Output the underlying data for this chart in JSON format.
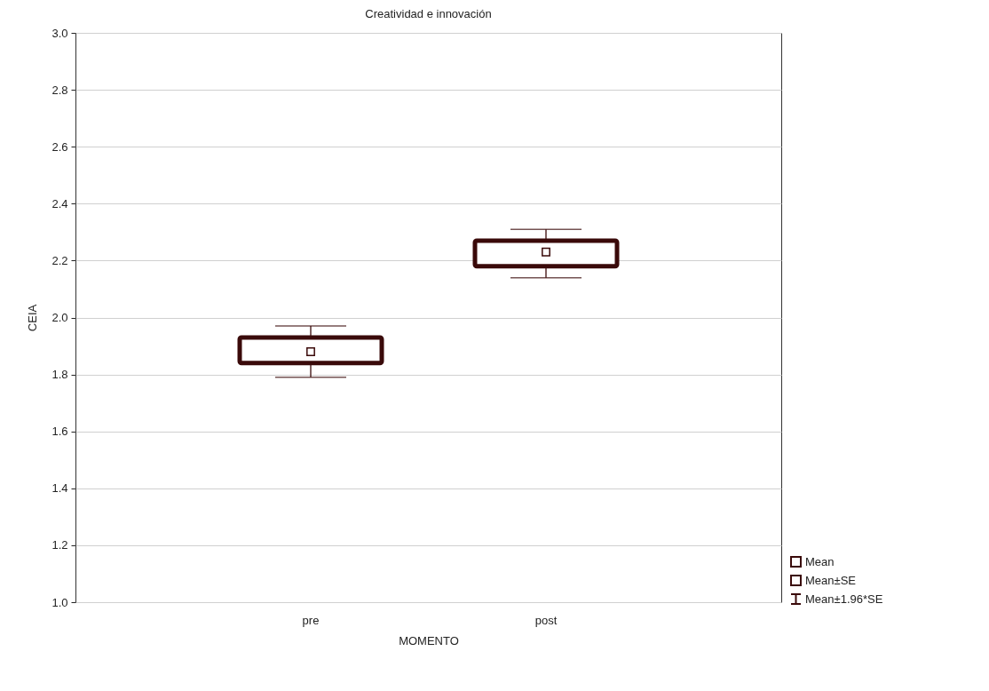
{
  "chart_data": {
    "type": "box",
    "title": "Creatividad e innovación",
    "xlabel": "MOMENTO",
    "ylabel": "CEIA",
    "categories": [
      "pre",
      "post"
    ],
    "boxes": [
      {
        "low": 1.79,
        "q1": 1.84,
        "median": 1.88,
        "q3": 1.93,
        "high": 1.97
      },
      {
        "low": 2.14,
        "q1": 2.18,
        "median": 2.23,
        "q3": 2.27,
        "high": 2.31
      }
    ],
    "color": "#3a0a0a",
    "ylim": [
      1,
      3
    ],
    "yticks": [
      {
        "value": 1,
        "label": "1.0"
      },
      {
        "value": 1.2,
        "label": "1.2"
      },
      {
        "value": 1.4,
        "label": "1.4"
      },
      {
        "value": 1.6,
        "label": "1.6"
      },
      {
        "value": 1.8,
        "label": "1.8"
      },
      {
        "value": 2,
        "label": "2.0"
      },
      {
        "value": 2.2,
        "label": "2.2"
      },
      {
        "value": 2.4,
        "label": "2.4"
      },
      {
        "value": 2.6,
        "label": "2.6"
      },
      {
        "value": 2.8,
        "label": "2.8"
      },
      {
        "value": 3,
        "label": "3.0"
      }
    ],
    "grid": "y",
    "marker": "square",
    "annotations": [
      "Mean",
      "Mean±SE",
      "Mean±1.96*SE"
    ]
  }
}
